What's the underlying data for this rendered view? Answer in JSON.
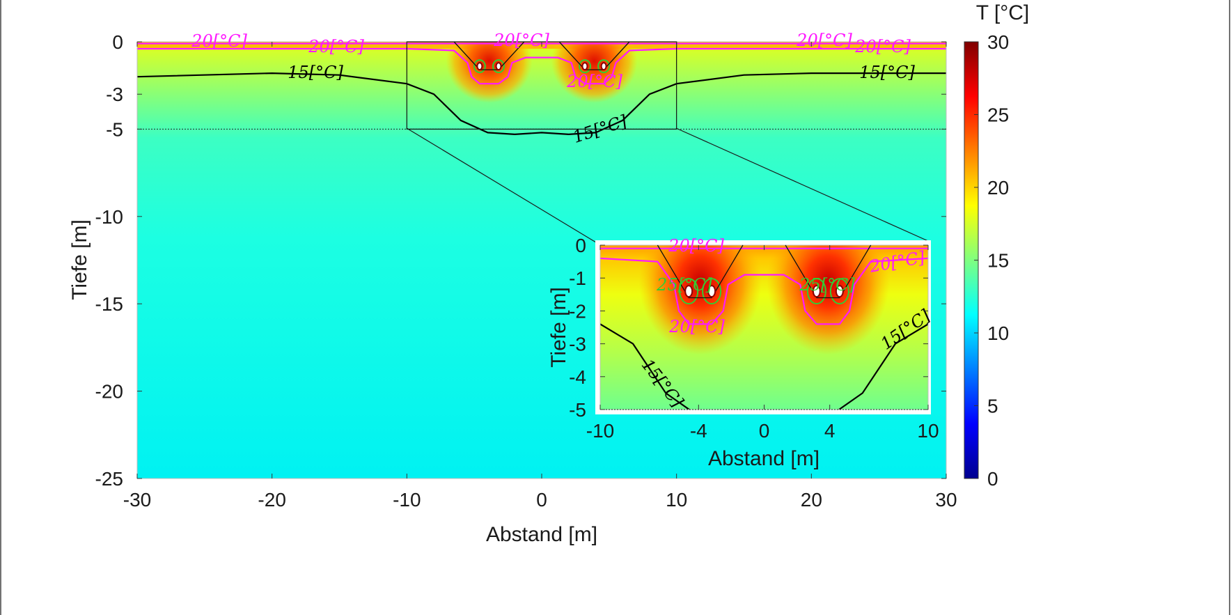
{
  "chart_data": [
    {
      "type": "heatmap",
      "xlabel": "Abstand [m]",
      "ylabel": "Tiefe [m]",
      "xlim": [
        -30,
        30
      ],
      "ylim": [
        -25,
        0
      ],
      "xticks": [
        -30,
        -20,
        -10,
        0,
        10,
        20,
        30
      ],
      "xtick_labels": [
        "-30",
        "-20",
        "-10",
        "0",
        "10",
        "20",
        "30"
      ],
      "yticks": [
        0,
        -3,
        -5,
        -10,
        -15,
        -20,
        -25
      ],
      "ytick_labels": [
        "0",
        "-3",
        "-5",
        "-10",
        "-15",
        "-20",
        "-25"
      ],
      "background_temperature": 11.5,
      "cables": [
        {
          "x": -4.6,
          "depth": -1.4
        },
        {
          "x": -3.2,
          "depth": -1.4
        },
        {
          "x": 3.2,
          "depth": -1.4
        },
        {
          "x": 4.6,
          "depth": -1.4
        }
      ],
      "trenches": [
        {
          "top_left": -6.5,
          "top_right": -1.3,
          "bottom_left": -4.6,
          "bottom_right": -3.2,
          "depth": -1.6
        },
        {
          "top_left": 1.3,
          "top_right": 6.5,
          "bottom_left": 3.2,
          "bottom_right": 4.6,
          "depth": -1.6
        }
      ],
      "contours": [
        {
          "level": 20,
          "label": "20[°C]",
          "points": [
            [
              -30,
              -0.4
            ],
            [
              -10,
              -0.4
            ],
            [
              -6.5,
              -0.5
            ],
            [
              -5.5,
              -1.2
            ],
            [
              -5.2,
              -2.0
            ],
            [
              -4.6,
              -2.4
            ],
            [
              -3.2,
              -2.4
            ],
            [
              -2.5,
              -2.0
            ],
            [
              -2.2,
              -1.2
            ],
            [
              -1.2,
              -0.9
            ],
            [
              0,
              -0.9
            ],
            [
              1.2,
              -0.9
            ],
            [
              2.2,
              -1.2
            ],
            [
              2.5,
              -2.0
            ],
            [
              3.2,
              -2.4
            ],
            [
              4.6,
              -2.4
            ],
            [
              5.2,
              -2.0
            ],
            [
              5.5,
              -1.2
            ],
            [
              6.5,
              -0.5
            ],
            [
              10,
              -0.4
            ],
            [
              30,
              -0.4
            ]
          ]
        },
        {
          "level": 20,
          "label": "20[°C]",
          "points": [
            [
              -30,
              -0.1
            ],
            [
              30,
              -0.1
            ]
          ]
        },
        {
          "level": 15,
          "label": "15[°C]",
          "points": [
            [
              -30,
              -2.0
            ],
            [
              -20,
              -1.8
            ],
            [
              -15,
              -1.9
            ],
            [
              -10,
              -2.4
            ],
            [
              -8,
              -3.0
            ],
            [
              -6,
              -4.5
            ],
            [
              -4,
              -5.2
            ],
            [
              -2,
              -5.3
            ],
            [
              0,
              -5.2
            ],
            [
              2,
              -5.3
            ],
            [
              4,
              -5.2
            ],
            [
              6,
              -4.5
            ],
            [
              8,
              -3.0
            ],
            [
              10,
              -2.4
            ],
            [
              15,
              -1.9
            ],
            [
              20,
              -1.8
            ],
            [
              30,
              -1.8
            ]
          ]
        }
      ],
      "contour_labels_outer": [
        "20[°C]",
        "20[°C]",
        "20[°C]",
        "20[°C]",
        "20[°C]",
        "20[°C]",
        "15[°C]",
        "15[°C]",
        "15[°C]"
      ],
      "zoom_box": {
        "x": [
          -10,
          10
        ],
        "y": [
          -5,
          0
        ]
      }
    },
    {
      "type": "heatmap",
      "name": "inset",
      "xlabel": "Abstand [m]",
      "ylabel": "Tiefe [m]",
      "xlim": [
        -10,
        10
      ],
      "ylim": [
        -5,
        0
      ],
      "xticks": [
        -10,
        -4,
        0,
        4,
        10
      ],
      "xtick_labels": [
        "-10",
        "-4",
        "0",
        "4",
        "10"
      ],
      "yticks": [
        0,
        -1,
        -2,
        -3,
        -4,
        -5
      ],
      "ytick_labels": [
        "0",
        "-1",
        "-2",
        "-3",
        "-4",
        "-5"
      ],
      "contour_labels": [
        "20[°C]",
        "20[°C]",
        "20[°C]",
        "15[°C]",
        "15[°C]",
        "25[°C]",
        "25[°C]"
      ]
    }
  ],
  "colorbar": {
    "title": "T [°C]",
    "min": 0,
    "max": 30,
    "ticks": [
      "0",
      "5",
      "10",
      "15",
      "20",
      "25",
      "30"
    ],
    "colormap": "jet"
  },
  "colors": {
    "contour_20": "#ff19ff",
    "contour_15": "#000000",
    "contour_cable": "#33cc33",
    "frame": "#333333"
  }
}
